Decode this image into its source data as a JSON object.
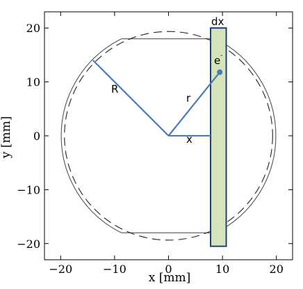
{
  "figure": {
    "xlabel": "x [mm]",
    "ylabel": "y [mm]",
    "xlim": [
      -23,
      23
    ],
    "ylim": [
      -23,
      23
    ],
    "xticks": [
      -20,
      -10,
      0,
      10,
      20
    ],
    "yticks": [
      -20,
      -10,
      0,
      10,
      20
    ],
    "xtick_labels": [
      "−20",
      "−10",
      "0",
      "10",
      "20"
    ],
    "ytick_labels": [
      "−20",
      "−10",
      "0",
      "10",
      "20"
    ],
    "colors": {
      "radius_lines": "#4a78b8",
      "strip_fill": "#d6e4bc",
      "strip_stroke": "#1f3f73",
      "outline": "#555555"
    },
    "labels": {
      "R": "R",
      "r": "r",
      "x": "x",
      "dx": "dx",
      "electron_base": "e",
      "electron_sup": "-"
    },
    "geometry": {
      "outer_radius_R": 20,
      "flat_half_height": 18,
      "dashed_radius": 19.3,
      "strip_x": [
        7.8,
        10.7
      ],
      "strip_y": [
        -20.5,
        20
      ],
      "electron_point": [
        9.5,
        11.8
      ],
      "R_endpoint": [
        -14,
        14
      ],
      "x_segment_end": 7.8
    }
  }
}
